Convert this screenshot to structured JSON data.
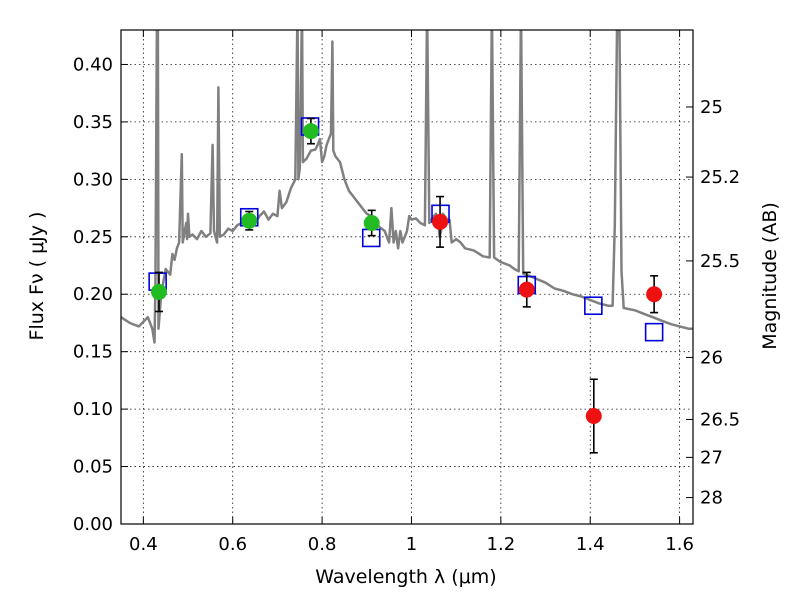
{
  "chart_data": {
    "type": "scatter",
    "title": "",
    "xlabel": "Wavelength  λ (μm)",
    "ylabel": "Flux  Fν  ( μJy )",
    "y2label": "Magnitude (AB)",
    "xlim": [
      0.35,
      1.63
    ],
    "ylim": [
      0.0,
      0.43
    ],
    "grid": true,
    "x_ticks": [
      0.4,
      0.6,
      0.8,
      1.0,
      1.2,
      1.4,
      1.6
    ],
    "x_tick_labels": [
      "0.4",
      "0.6",
      "0.8",
      "1",
      "1.2",
      "1.4",
      "1.6"
    ],
    "y_ticks": [
      0.0,
      0.05,
      0.1,
      0.15,
      0.2,
      0.25,
      0.3,
      0.35,
      0.4
    ],
    "y_tick_labels": [
      "0.00",
      "0.05",
      "0.10",
      "0.15",
      "0.20",
      "0.25",
      "0.30",
      "0.35",
      "0.40"
    ],
    "y2_ticks": [
      {
        "label": "25",
        "flux": 0.363
      },
      {
        "label": "25.2",
        "flux": 0.302
      },
      {
        "label": "25.5",
        "flux": 0.229
      },
      {
        "label": "26",
        "flux": 0.145
      },
      {
        "label": "26.5",
        "flux": 0.091
      },
      {
        "label": "27",
        "flux": 0.058
      },
      {
        "label": "28",
        "flux": 0.023
      }
    ],
    "series": [
      {
        "marker": "circle",
        "color": "#22bb22",
        "points": [
          {
            "x": 0.435,
            "y": 0.202,
            "err": 0.017
          },
          {
            "x": 0.637,
            "y": 0.264,
            "err": 0.008
          },
          {
            "x": 0.775,
            "y": 0.342,
            "err": 0.011
          },
          {
            "x": 0.911,
            "y": 0.262,
            "err": 0.011
          }
        ]
      },
      {
        "marker": "circle",
        "color": "#ee1111",
        "points": [
          {
            "x": 1.064,
            "y": 0.263,
            "err": 0.022
          },
          {
            "x": 1.258,
            "y": 0.204,
            "err": 0.015
          },
          {
            "x": 1.408,
            "y": 0.094,
            "err": 0.032
          },
          {
            "x": 1.543,
            "y": 0.2,
            "err": 0.016
          }
        ]
      },
      {
        "marker": "open-square",
        "color": "#0000dd",
        "points": [
          {
            "x": 0.432,
            "y": 0.211
          },
          {
            "x": 0.637,
            "y": 0.267
          },
          {
            "x": 0.773,
            "y": 0.346
          },
          {
            "x": 0.91,
            "y": 0.249
          },
          {
            "x": 1.065,
            "y": 0.27
          },
          {
            "x": 1.258,
            "y": 0.208
          },
          {
            "x": 1.407,
            "y": 0.19
          },
          {
            "x": 1.543,
            "y": 0.167
          }
        ]
      },
      {
        "type": "line",
        "color": "#808080",
        "points": [
          [
            0.35,
            0.18
          ],
          [
            0.37,
            0.175
          ],
          [
            0.39,
            0.172
          ],
          [
            0.41,
            0.18
          ],
          [
            0.42,
            0.17
          ],
          [
            0.425,
            0.158
          ],
          [
            0.427,
            0.205
          ],
          [
            0.43,
            0.42
          ],
          [
            0.432,
            0.56
          ],
          [
            0.434,
            0.17
          ],
          [
            0.44,
            0.2
          ],
          [
            0.45,
            0.222
          ],
          [
            0.46,
            0.217
          ],
          [
            0.465,
            0.235
          ],
          [
            0.47,
            0.23
          ],
          [
            0.475,
            0.24
          ],
          [
            0.48,
            0.245
          ],
          [
            0.486,
            0.322
          ],
          [
            0.488,
            0.245
          ],
          [
            0.496,
            0.262
          ],
          [
            0.498,
            0.248
          ],
          [
            0.5,
            0.27
          ],
          [
            0.503,
            0.25
          ],
          [
            0.51,
            0.252
          ],
          [
            0.52,
            0.248
          ],
          [
            0.53,
            0.255
          ],
          [
            0.54,
            0.25
          ],
          [
            0.55,
            0.253
          ],
          [
            0.555,
            0.33
          ],
          [
            0.558,
            0.255
          ],
          [
            0.565,
            0.245
          ],
          [
            0.568,
            0.38
          ],
          [
            0.571,
            0.25
          ],
          [
            0.58,
            0.252
          ],
          [
            0.59,
            0.257
          ],
          [
            0.6,
            0.255
          ],
          [
            0.61,
            0.26
          ],
          [
            0.62,
            0.262
          ],
          [
            0.63,
            0.265
          ],
          [
            0.64,
            0.258
          ],
          [
            0.65,
            0.262
          ],
          [
            0.66,
            0.268
          ],
          [
            0.67,
            0.272
          ],
          [
            0.68,
            0.265
          ],
          [
            0.69,
            0.27
          ],
          [
            0.7,
            0.268
          ],
          [
            0.705,
            0.29
          ],
          [
            0.71,
            0.275
          ],
          [
            0.72,
            0.28
          ],
          [
            0.73,
            0.292
          ],
          [
            0.74,
            0.3
          ],
          [
            0.745,
            0.45
          ],
          [
            0.747,
            0.3
          ],
          [
            0.75,
            0.31
          ],
          [
            0.755,
            0.45
          ],
          [
            0.757,
            0.315
          ],
          [
            0.765,
            0.318
          ],
          [
            0.775,
            0.325
          ],
          [
            0.785,
            0.326
          ],
          [
            0.79,
            0.33
          ],
          [
            0.795,
            0.335
          ],
          [
            0.8,
            0.315
          ],
          [
            0.805,
            0.32
          ],
          [
            0.81,
            0.33
          ],
          [
            0.82,
            0.34
          ],
          [
            0.823,
            0.42
          ],
          [
            0.825,
            0.325
          ],
          [
            0.83,
            0.32
          ],
          [
            0.84,
            0.315
          ],
          [
            0.85,
            0.3
          ],
          [
            0.86,
            0.29
          ],
          [
            0.87,
            0.285
          ],
          [
            0.88,
            0.28
          ],
          [
            0.89,
            0.275
          ],
          [
            0.9,
            0.27
          ],
          [
            0.91,
            0.268
          ],
          [
            0.92,
            0.262
          ],
          [
            0.93,
            0.258
          ],
          [
            0.94,
            0.255
          ],
          [
            0.95,
            0.245
          ],
          [
            0.955,
            0.275
          ],
          [
            0.96,
            0.245
          ],
          [
            0.965,
            0.255
          ],
          [
            0.97,
            0.24
          ],
          [
            0.975,
            0.255
          ],
          [
            0.98,
            0.245
          ],
          [
            0.99,
            0.255
          ],
          [
            0.995,
            0.268
          ],
          [
            1.0,
            0.265
          ],
          [
            1.01,
            0.266
          ],
          [
            1.02,
            0.262
          ],
          [
            1.03,
            0.26
          ],
          [
            1.035,
            0.45
          ],
          [
            1.04,
            0.262
          ],
          [
            1.05,
            0.268
          ],
          [
            1.055,
            0.27
          ],
          [
            1.06,
            0.262
          ],
          [
            1.063,
            0.25
          ],
          [
            1.066,
            0.255
          ],
          [
            1.07,
            0.27
          ],
          [
            1.08,
            0.265
          ],
          [
            1.085,
            0.265
          ],
          [
            1.09,
            0.245
          ],
          [
            1.1,
            0.248
          ],
          [
            1.11,
            0.245
          ],
          [
            1.12,
            0.24
          ],
          [
            1.14,
            0.238
          ],
          [
            1.16,
            0.233
          ],
          [
            1.175,
            0.232
          ],
          [
            1.18,
            0.45
          ],
          [
            1.185,
            0.232
          ],
          [
            1.2,
            0.228
          ],
          [
            1.22,
            0.225
          ],
          [
            1.23,
            0.222
          ],
          [
            1.24,
            0.22
          ],
          [
            1.245,
            0.45
          ],
          [
            1.25,
            0.218
          ],
          [
            1.27,
            0.215
          ],
          [
            1.3,
            0.21
          ],
          [
            1.32,
            0.205
          ],
          [
            1.34,
            0.203
          ],
          [
            1.36,
            0.2
          ],
          [
            1.38,
            0.198
          ],
          [
            1.4,
            0.195
          ],
          [
            1.42,
            0.192
          ],
          [
            1.44,
            0.19
          ],
          [
            1.45,
            0.19
          ],
          [
            1.455,
            0.26
          ],
          [
            1.46,
            0.43
          ],
          [
            1.465,
            0.45
          ],
          [
            1.47,
            0.22
          ],
          [
            1.475,
            0.188
          ],
          [
            1.5,
            0.186
          ],
          [
            1.52,
            0.183
          ],
          [
            1.54,
            0.18
          ],
          [
            1.56,
            0.177
          ],
          [
            1.58,
            0.174
          ],
          [
            1.6,
            0.172
          ],
          [
            1.62,
            0.17
          ],
          [
            1.63,
            0.17
          ]
        ]
      }
    ]
  }
}
